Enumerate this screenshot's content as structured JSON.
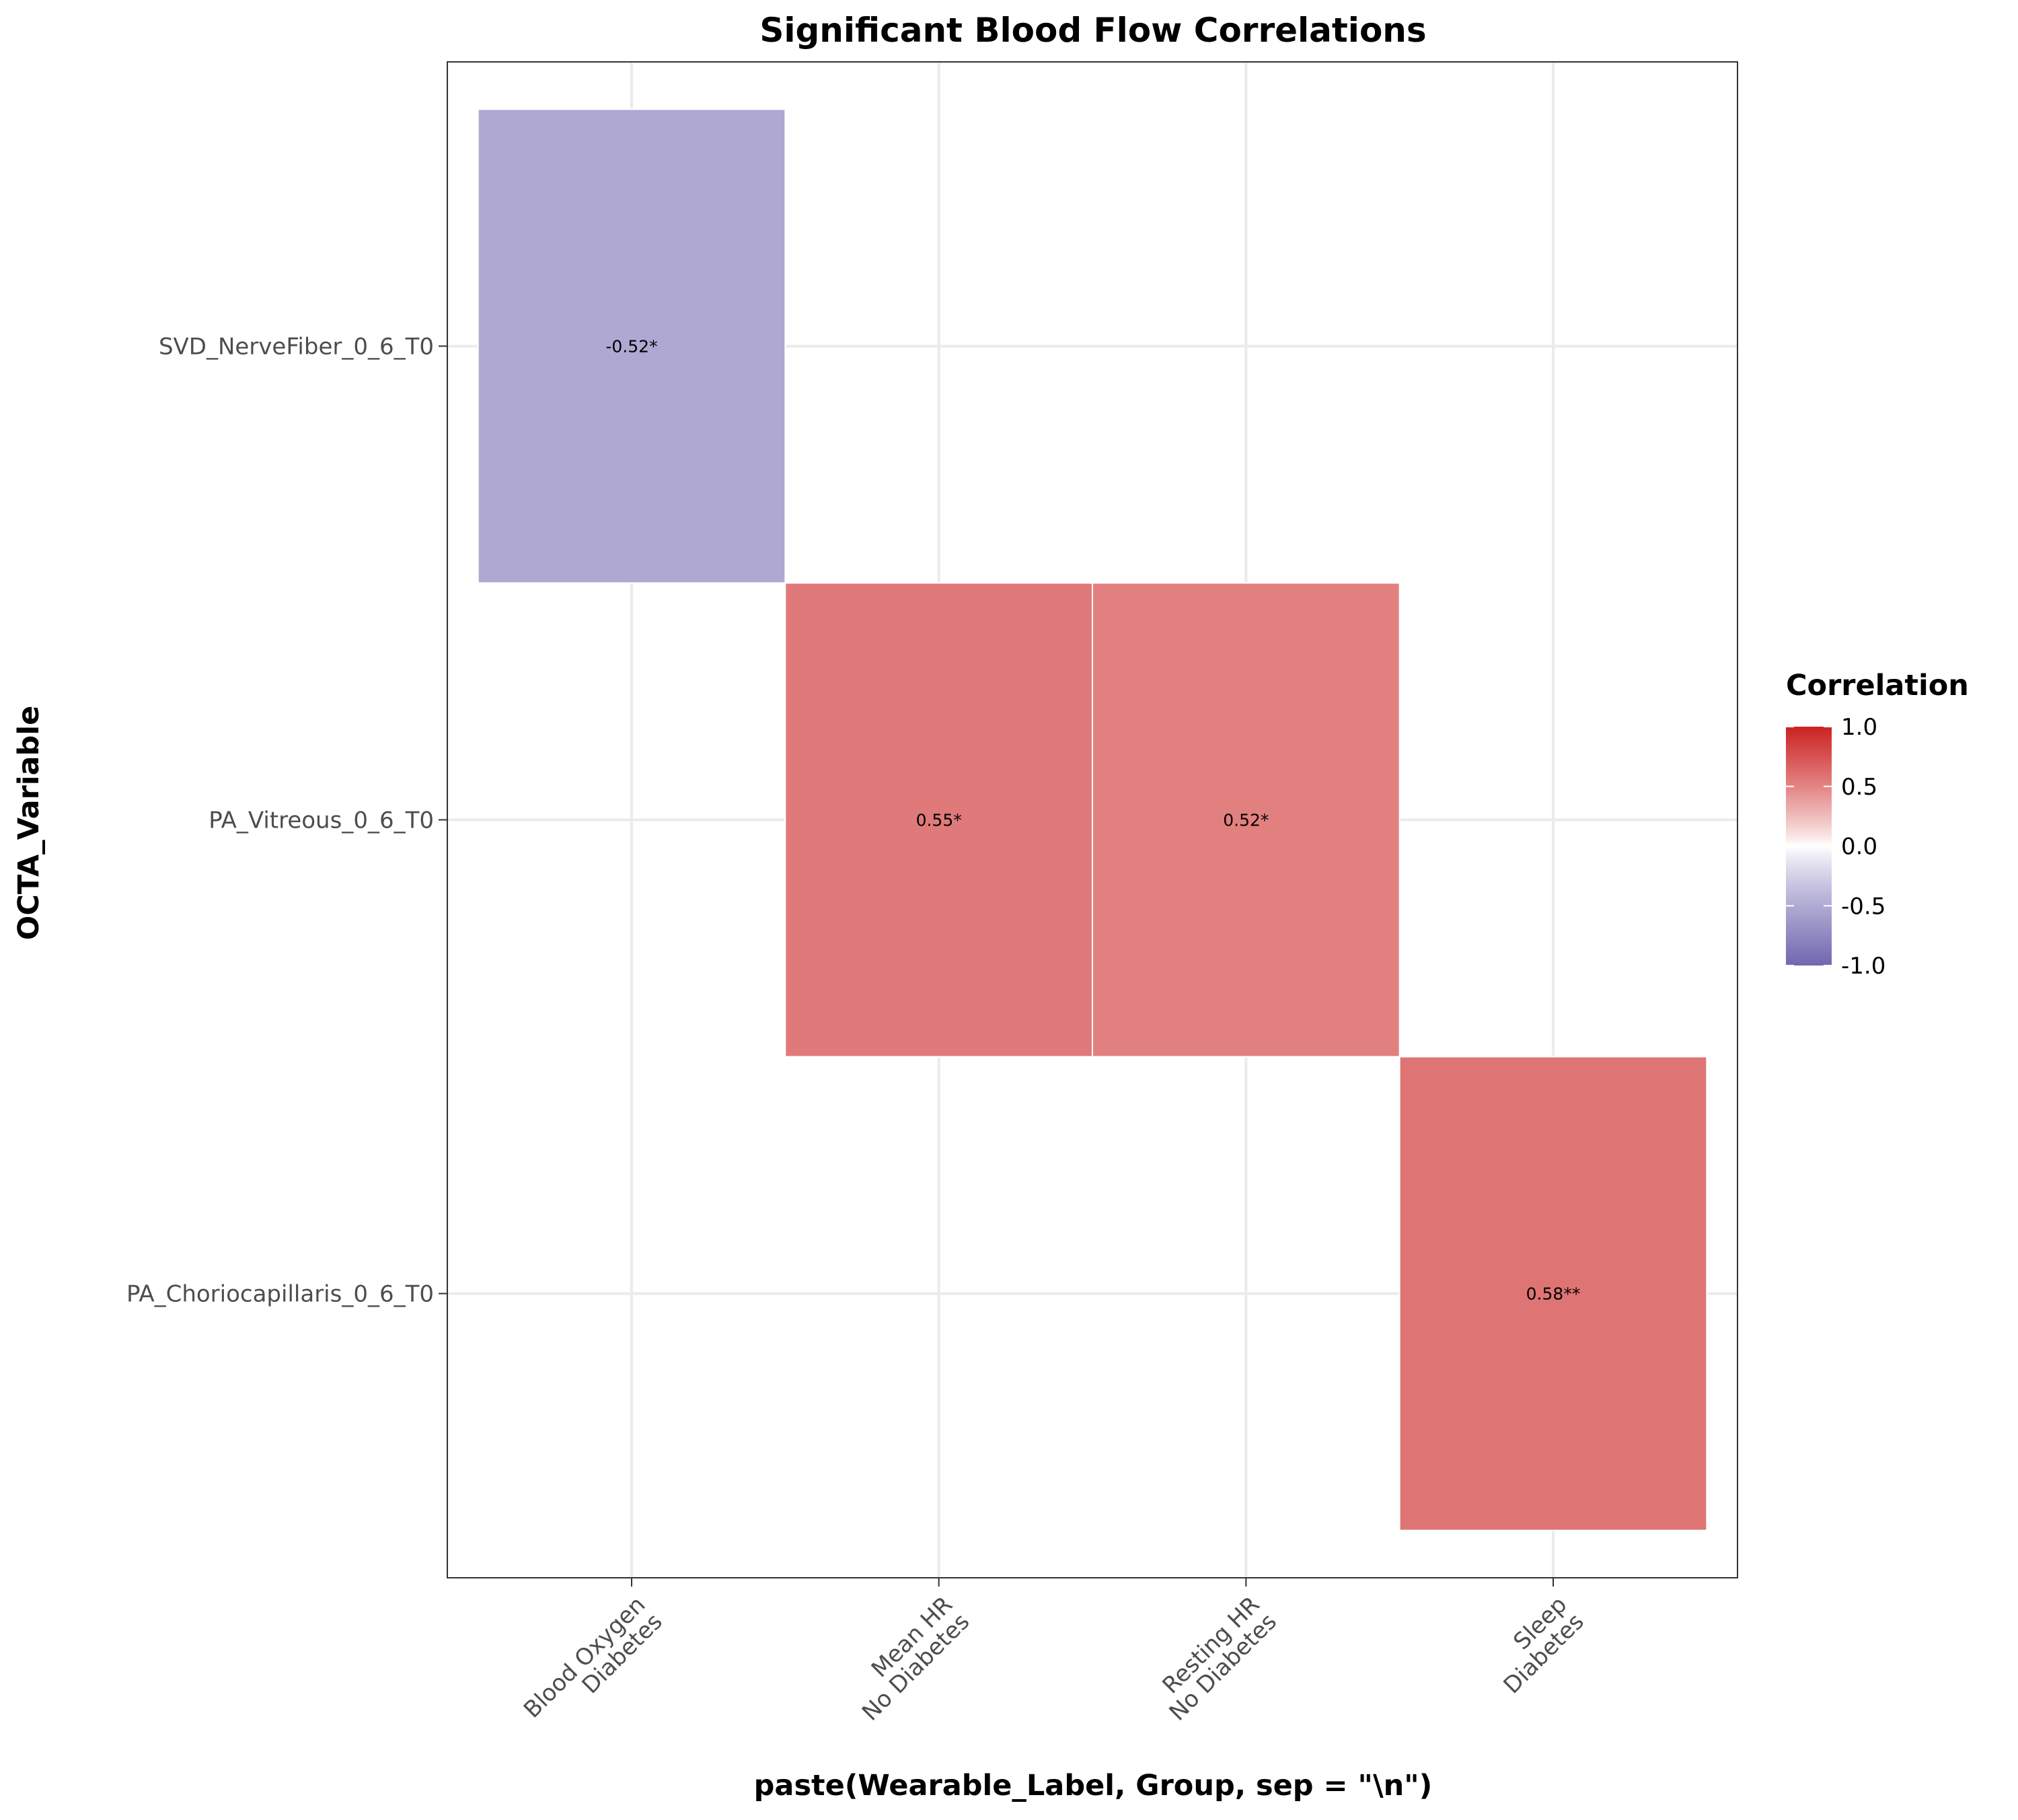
{
  "chart_data": {
    "type": "heatmap",
    "title": "Significant Blood Flow Correlations",
    "xlabel": "paste(Wearable_Label, Group, sep = \"\\n\")",
    "ylabel": "OCTA_Variable",
    "x_categories": [
      [
        "Blood Oxygen",
        "Diabetes"
      ],
      [
        "Mean HR",
        "No Diabetes"
      ],
      [
        "Resting HR",
        "No Diabetes"
      ],
      [
        "Sleep",
        "Diabetes"
      ]
    ],
    "y_categories": [
      "SVD_NerveFiber_0_6_T0",
      "PA_Vitreous_0_6_T0",
      "PA_Choriocapillaris_0_6_T0"
    ],
    "cells": [
      {
        "x": 0,
        "y": 0,
        "value": -0.52,
        "label": "-0.52*"
      },
      {
        "x": 1,
        "y": 1,
        "value": 0.55,
        "label": "0.55*"
      },
      {
        "x": 2,
        "y": 1,
        "value": 0.52,
        "label": "0.52*"
      },
      {
        "x": 3,
        "y": 2,
        "value": 0.58,
        "label": "0.58**"
      }
    ],
    "legend": {
      "title": "Correlation",
      "position": "right",
      "range": [
        -1,
        1
      ],
      "ticks": [
        1.0,
        0.5,
        0.0,
        -0.5,
        -1.0
      ],
      "tick_labels": [
        "1.0",
        "0.5",
        "0.0",
        "-0.5",
        "-1.0"
      ],
      "colors": {
        "low": "#1a0a80",
        "mid": "#ffffff",
        "high": "#cc2222"
      }
    },
    "grid": true
  }
}
